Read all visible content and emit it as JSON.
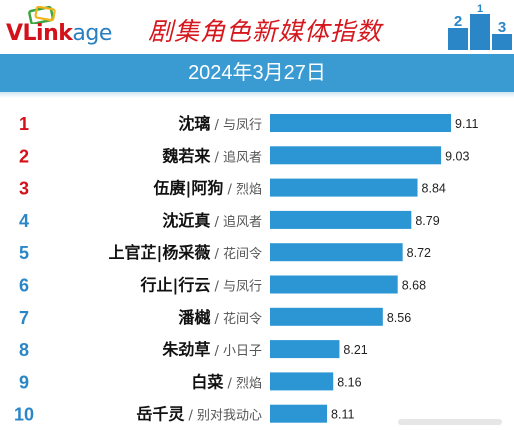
{
  "header": {
    "logo_text_v": "V",
    "logo_text_link": "Link",
    "logo_text_age": "age",
    "title": "剧集角色新媒体指数",
    "podium_numbers": [
      "2",
      "1",
      "3"
    ]
  },
  "date": "2024年3月27日",
  "colors": {
    "band": "#3a9ad2",
    "bar": "#2c95d3",
    "rank_top": "#d4101a",
    "rank_rest": "#2a86c7"
  },
  "chart_data": {
    "type": "bar",
    "orientation": "horizontal",
    "title": "剧集角色新媒体指数",
    "subtitle": "2024年3月27日",
    "ranks": [
      "1",
      "2",
      "3",
      "4",
      "5",
      "6",
      "7",
      "8",
      "9",
      "10"
    ],
    "names": [
      "沈璃",
      "魏若来",
      "伍赓|阿狗",
      "沈近真",
      "上官芷|杨采薇",
      "行止|行云",
      "潘樾",
      "朱劲草",
      "白菜",
      "岳千灵"
    ],
    "shows": [
      "与凤行",
      "追风者",
      "烈焰",
      "追风者",
      "花间令",
      "与凤行",
      "花间令",
      "小日子",
      "烈焰",
      "别对我动心"
    ],
    "values": [
      9.11,
      9.03,
      8.84,
      8.79,
      8.72,
      8.68,
      8.56,
      8.21,
      8.16,
      8.11
    ],
    "value_labels": [
      "9.11",
      "9.03",
      "8.84",
      "8.79",
      "8.72",
      "8.68",
      "8.56",
      "8.21",
      "8.16",
      "8.11"
    ],
    "xlim": [
      7.65,
      9.11
    ],
    "legend": "none",
    "grid": false
  }
}
